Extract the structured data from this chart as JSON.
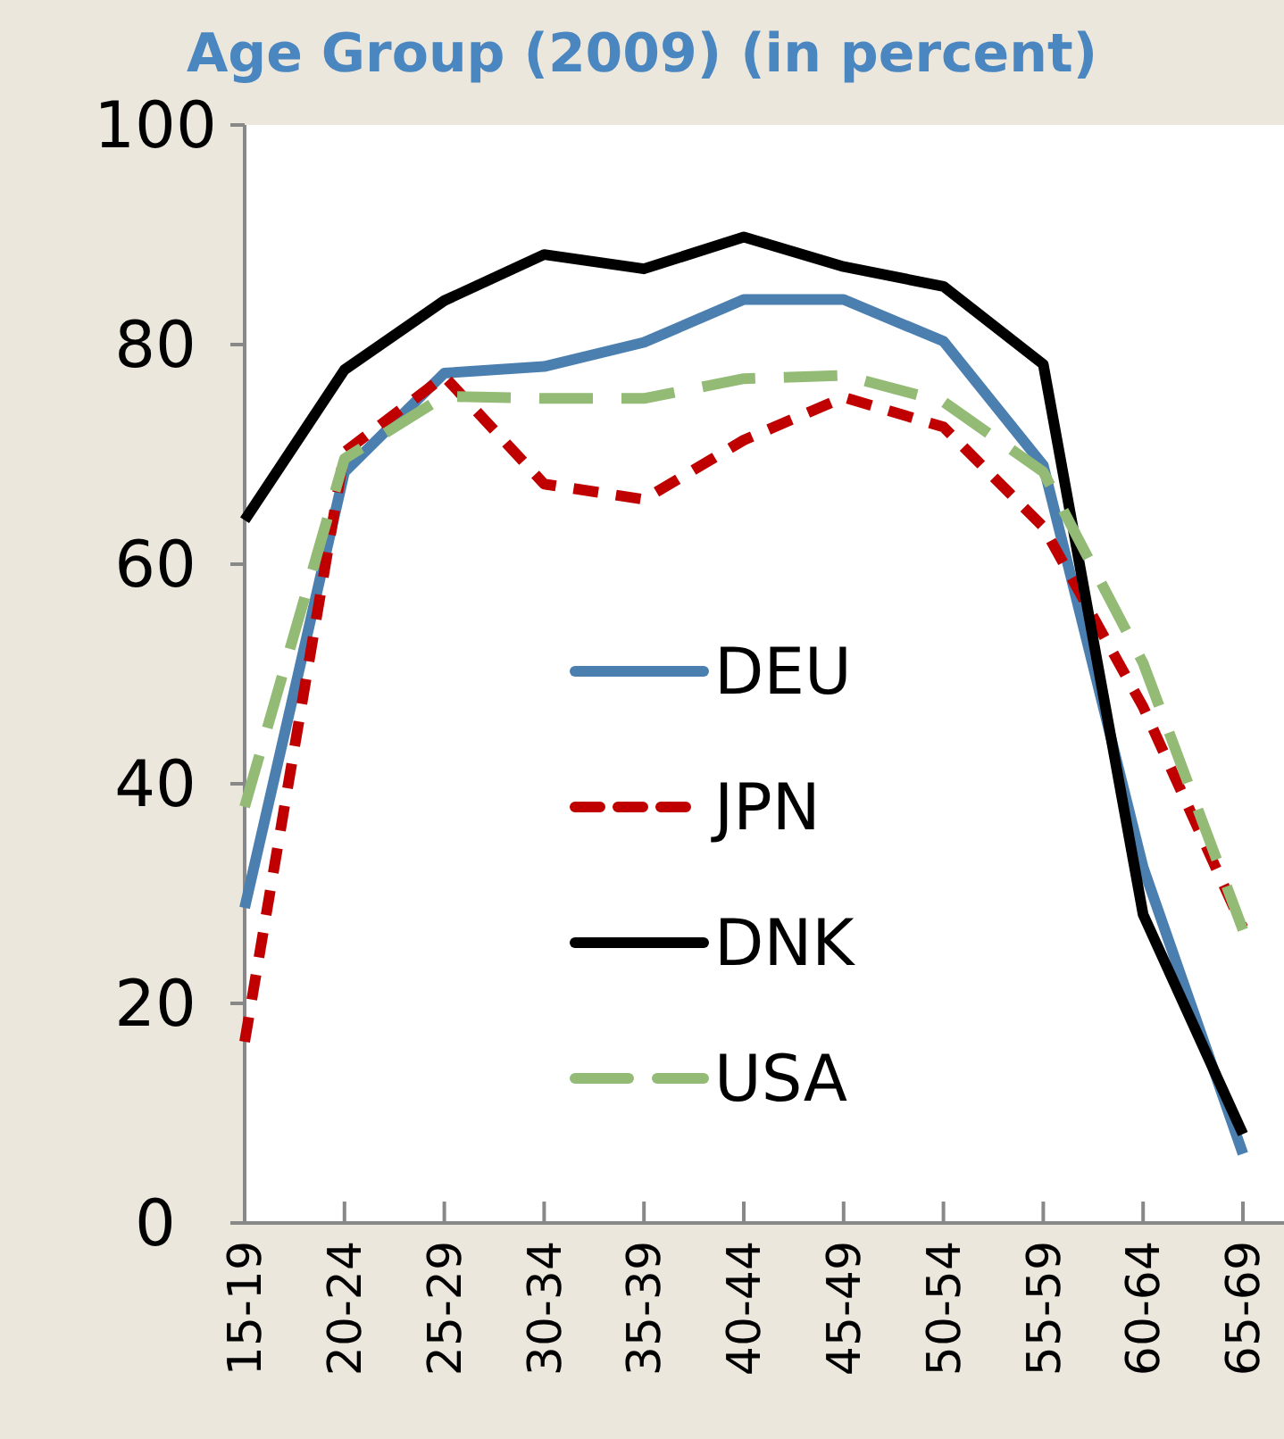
{
  "chart_data": {
    "type": "line",
    "title": "Age Group (2009) (in percent)",
    "categories": [
      "15-19",
      "20-24",
      "25-29",
      "30-34",
      "35-39",
      "40-44",
      "45-49",
      "50-54",
      "55-59",
      "60-64",
      "65-69"
    ],
    "ylim": [
      0,
      100
    ],
    "yticks": [
      0,
      20,
      40,
      60,
      80,
      100
    ],
    "grid": false,
    "legend": "center",
    "series": [
      {
        "name": "DEU",
        "color": "#4a7fb0",
        "line_style": "solid",
        "values": [
          28.7,
          68.4,
          77.4,
          78,
          80.2,
          84.1,
          84.1,
          80.3,
          69,
          32.4,
          6.3
        ]
      },
      {
        "name": "JPN",
        "color": "#c00000",
        "line_style": "dashed",
        "values": [
          16.5,
          70.2,
          77.1,
          67.3,
          65.9,
          71.3,
          75.2,
          72.5,
          63.4,
          47,
          26.9
        ]
      },
      {
        "name": "DNK",
        "color": "#000000",
        "line_style": "solid",
        "values": [
          64,
          77.7,
          84,
          88.2,
          86.9,
          89.8,
          87.1,
          85.3,
          78.2,
          28.1,
          8.1
        ]
      },
      {
        "name": "USA",
        "color": "#93bb76",
        "line_style": "longdash",
        "values": [
          37.9,
          69.6,
          75.3,
          75.1,
          75.1,
          76.9,
          77.2,
          74.8,
          68.4,
          51,
          26.7
        ]
      }
    ]
  }
}
